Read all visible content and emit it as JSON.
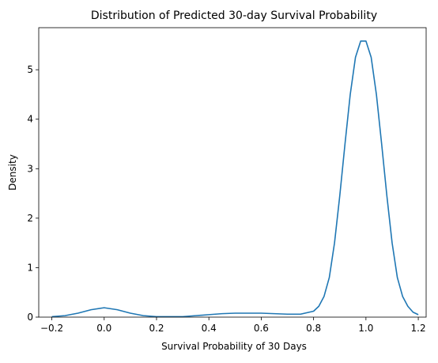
{
  "chart_data": {
    "type": "line",
    "title": "Distribution of Predicted 30-day Survival Probability",
    "xlabel": "Survival Probability of 30 Days",
    "ylabel": "Density",
    "xlim": [
      -0.25,
      1.23
    ],
    "ylim": [
      0,
      5.85
    ],
    "x_ticks": [
      -0.2,
      0.0,
      0.2,
      0.4,
      0.6,
      0.8,
      1.0,
      1.2
    ],
    "x_tick_labels": [
      "−0.2",
      "0.0",
      "0.2",
      "0.4",
      "0.6",
      "0.8",
      "1.0",
      "1.2"
    ],
    "y_ticks": [
      0,
      1,
      2,
      3,
      4,
      5
    ],
    "y_tick_labels": [
      "0",
      "1",
      "2",
      "3",
      "4",
      "5"
    ],
    "grid": false,
    "line_color": "#1f77b4",
    "series": [
      {
        "x": [
          -0.2,
          -0.15,
          -0.1,
          -0.05,
          0.0,
          0.05,
          0.1,
          0.15,
          0.2,
          0.25,
          0.3,
          0.35,
          0.4,
          0.45,
          0.5,
          0.55,
          0.6,
          0.65,
          0.7,
          0.75,
          0.8,
          0.82,
          0.84,
          0.86,
          0.88,
          0.9,
          0.92,
          0.94,
          0.96,
          0.98,
          1.0,
          1.02,
          1.04,
          1.06,
          1.08,
          1.1,
          1.12,
          1.14,
          1.16,
          1.18,
          1.2
        ],
        "y": [
          0.01,
          0.03,
          0.08,
          0.15,
          0.19,
          0.15,
          0.08,
          0.03,
          0.01,
          0.01,
          0.01,
          0.03,
          0.05,
          0.07,
          0.08,
          0.08,
          0.08,
          0.07,
          0.06,
          0.06,
          0.12,
          0.22,
          0.42,
          0.8,
          1.5,
          2.45,
          3.5,
          4.5,
          5.25,
          5.58,
          5.58,
          5.25,
          4.5,
          3.5,
          2.45,
          1.5,
          0.8,
          0.42,
          0.22,
          0.1,
          0.05
        ]
      }
    ]
  }
}
